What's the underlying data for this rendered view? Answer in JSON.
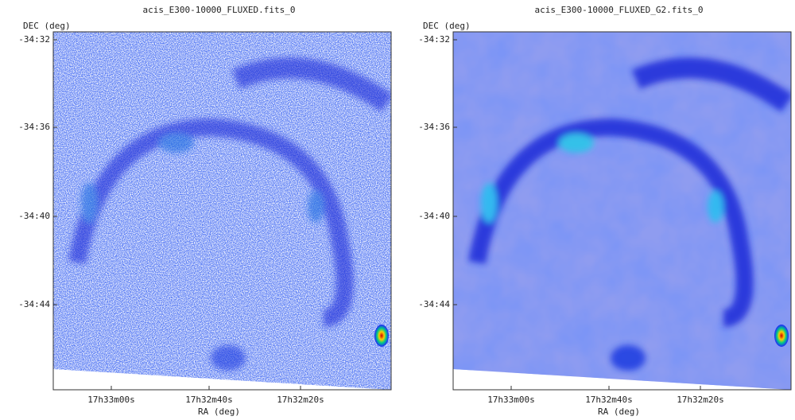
{
  "panels": [
    {
      "title": "acis_E300-10000_FLUXED.fits_0",
      "y_label": "DEC (deg)",
      "x_label": "RA (deg)",
      "y_ticks": [
        "-34:32",
        "-34:36",
        "-34:40",
        "-34:44"
      ],
      "x_ticks": [
        "17h33m00s",
        "17h32m40s",
        "17h32m20s"
      ]
    },
    {
      "title": "acis_E300-10000_FLUXED_G2.fits_0",
      "y_label": "DEC (deg)",
      "x_label": "RA (deg)",
      "y_ticks": [
        "-34:32",
        "-34:36",
        "-34:40",
        "-34:44"
      ],
      "x_ticks": [
        "17h33m00s",
        "17h32m40s",
        "17h32m20s"
      ]
    }
  ]
}
